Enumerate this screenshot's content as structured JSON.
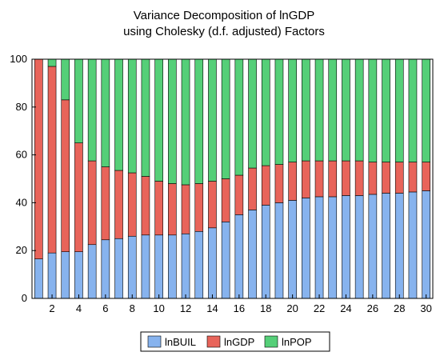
{
  "chart_data": {
    "type": "bar",
    "stacked": true,
    "title": "Variance Decomposition of lnGDP",
    "subtitle": "using Cholesky (d.f. adjusted) Factors",
    "xlabel": "",
    "ylabel": "",
    "ylim": [
      0,
      100
    ],
    "yticks": [
      0,
      20,
      40,
      60,
      80,
      100
    ],
    "categories": [
      1,
      2,
      3,
      4,
      5,
      6,
      7,
      8,
      9,
      10,
      11,
      12,
      13,
      14,
      15,
      16,
      17,
      18,
      19,
      20,
      21,
      22,
      23,
      24,
      25,
      26,
      27,
      28,
      29,
      30
    ],
    "xtick_labels": [
      2,
      4,
      6,
      8,
      10,
      12,
      14,
      16,
      18,
      20,
      22,
      24,
      26,
      28,
      30
    ],
    "grid": false,
    "legend_position": "bottom",
    "series": [
      {
        "name": "lnBUIL",
        "color": "#87b3ee",
        "values": [
          16.5,
          19,
          19.5,
          19.5,
          22.5,
          24.5,
          25,
          26,
          26.5,
          26.5,
          26.5,
          27,
          28,
          29.5,
          32,
          35,
          37,
          39,
          40,
          41,
          42,
          42.5,
          42.5,
          43,
          43,
          43.5,
          44,
          44,
          44.5,
          45
        ]
      },
      {
        "name": "lnGDP",
        "color": "#e8645a",
        "values": [
          83.5,
          78,
          63.5,
          45.5,
          35,
          30.5,
          28.5,
          26.5,
          24.5,
          22.5,
          21.5,
          20.5,
          20,
          19.5,
          18,
          16.5,
          17.5,
          16.5,
          16,
          16,
          15.5,
          15,
          15,
          14.5,
          14.5,
          13.5,
          13,
          13,
          12.5,
          12
        ]
      },
      {
        "name": "lnPOP",
        "color": "#55cf78",
        "values": [
          0,
          3,
          17,
          35,
          42.5,
          45,
          46.5,
          47.5,
          49,
          51,
          52,
          52.5,
          52,
          51,
          50,
          48.5,
          45.5,
          44.5,
          44,
          43,
          42.5,
          42.5,
          42.5,
          42.5,
          42.5,
          43,
          43,
          43,
          43,
          43
        ]
      }
    ]
  }
}
